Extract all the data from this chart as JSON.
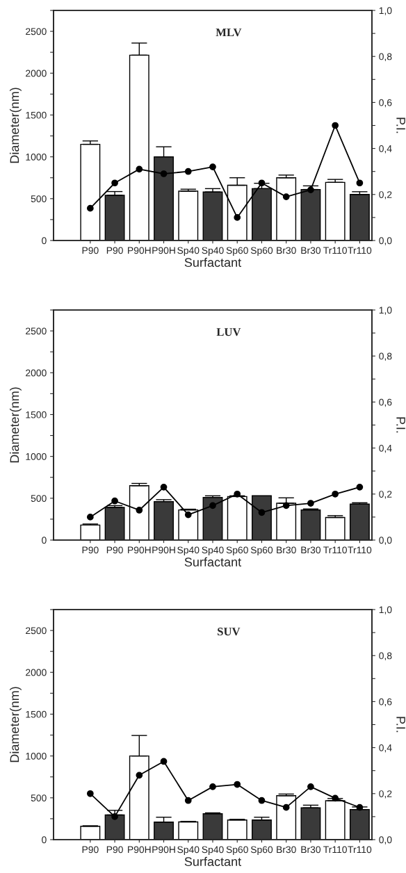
{
  "chart_data": [
    {
      "type": "bar",
      "title": "MLV",
      "xlabel": "Surfactant",
      "ylabel": "Diameter(nm)",
      "y2label": "P.I.",
      "categories": [
        "P90",
        "P90",
        "P90H",
        "P90H",
        "Sp40",
        "Sp40",
        "Sp60",
        "Sp60",
        "Br30",
        "Br30",
        "Tr110",
        "Tr110"
      ],
      "ylim": [
        0,
        2750
      ],
      "yticks": [
        0,
        {
          "value": 250,
          "label": null
        },
        500,
        {
          "value": 750,
          "label": null
        },
        1000,
        {
          "value": 1250,
          "label": null
        },
        1500,
        {
          "value": 1750,
          "label": null
        },
        2000,
        {
          "value": 2250,
          "label": null
        },
        2500,
        {
          "value": 2750,
          "label": null
        }
      ],
      "y2lim": [
        0,
        1
      ],
      "y2ticks": [
        {
          "value": 0,
          "label": "0,0"
        },
        {
          "value": 0.1,
          "label": null
        },
        {
          "value": 0.2,
          "label": "0,2"
        },
        {
          "value": 0.3,
          "label": null
        },
        {
          "value": 0.4,
          "label": "0,4"
        },
        {
          "value": 0.5,
          "label": null
        },
        {
          "value": 0.6,
          "label": "0,6"
        },
        {
          "value": 0.7,
          "label": null
        },
        {
          "value": 0.8,
          "label": "0,8"
        },
        {
          "value": 0.9,
          "label": null
        },
        {
          "value": 1,
          "label": "1,0"
        }
      ],
      "grid": false,
      "legend": false,
      "series": [
        {
          "colors": [
            "#ffffff",
            "#3a3a3a",
            "#ffffff",
            "#3a3a3a",
            "#ffffff",
            "#3a3a3a",
            "#ffffff",
            "#3a3a3a",
            "#ffffff",
            "#3a3a3a",
            "#ffffff",
            "#3a3a3a"
          ],
          "values": [
            1150,
            540,
            2215,
            1000,
            590,
            580,
            660,
            620,
            750,
            610,
            695,
            550
          ],
          "errors": [
            [
              1150,
              1190
            ],
            [
              540,
              585
            ],
            [
              2215,
              2360
            ],
            [
              1000,
              1120
            ],
            [
              590,
              613
            ],
            [
              580,
              620
            ],
            [
              660,
              750
            ],
            [
              620,
              684
            ],
            [
              750,
              782
            ],
            [
              610,
              653
            ],
            [
              695,
              730
            ],
            [
              550,
              583
            ]
          ]
        },
        {
          "type": "line",
          "axis": "y2",
          "color": "#000000",
          "marker": "circle",
          "line_style": "solid",
          "values": [
            0.14,
            0.25,
            0.31,
            0.29,
            0.3,
            0.32,
            0.1,
            0.25,
            0.19,
            0.22,
            0.5,
            0.25
          ]
        }
      ]
    },
    {
      "type": "bar",
      "title": "LUV",
      "xlabel": "Surfactant",
      "ylabel": "Diameter(nm)",
      "y2label": "P.I.",
      "categories": [
        "P90",
        "P90",
        "P90H",
        "P90H",
        "Sp40",
        "Sp40",
        "Sp60",
        "Sp60",
        "Br30",
        "Br30",
        "Tr110",
        "Tr110"
      ],
      "ylim": [
        0,
        2750
      ],
      "yticks": [
        0,
        {
          "value": 250,
          "label": null
        },
        500,
        {
          "value": 750,
          "label": null
        },
        1000,
        {
          "value": 1250,
          "label": null
        },
        1500,
        {
          "value": 1750,
          "label": null
        },
        2000,
        {
          "value": 2250,
          "label": null
        },
        2500,
        {
          "value": 2750,
          "label": null
        }
      ],
      "y2lim": [
        0,
        1
      ],
      "y2ticks": [
        {
          "value": 0,
          "label": "0,0"
        },
        {
          "value": 0.1,
          "label": null
        },
        {
          "value": 0.2,
          "label": "0,2"
        },
        {
          "value": 0.3,
          "label": null
        },
        {
          "value": 0.4,
          "label": "0,4"
        },
        {
          "value": 0.5,
          "label": null
        },
        {
          "value": 0.6,
          "label": "0,6"
        },
        {
          "value": 0.7,
          "label": null
        },
        {
          "value": 0.8,
          "label": "0,8"
        },
        {
          "value": 0.9,
          "label": null
        },
        {
          "value": 1,
          "label": "1,0"
        }
      ],
      "grid": false,
      "legend": false,
      "series": [
        {
          "colors": [
            "#ffffff",
            "#3a3a3a",
            "#ffffff",
            "#3a3a3a",
            "#ffffff",
            "#3a3a3a",
            "#ffffff",
            "#3a3a3a",
            "#ffffff",
            "#3a3a3a",
            "#ffffff",
            "#3a3a3a"
          ],
          "values": [
            180,
            390,
            650,
            460,
            360,
            510,
            520,
            530,
            440,
            360,
            270,
            430
          ],
          "errors": [
            [
              180,
              192
            ],
            [
              390,
              412
            ],
            [
              650,
              677
            ],
            [
              460,
              483
            ],
            [
              360,
              369
            ],
            [
              510,
              529
            ],
            [
              520,
              529
            ],
            null,
            [
              440,
              505
            ],
            [
              360,
              372
            ],
            [
              270,
              292
            ],
            [
              430,
              446
            ]
          ]
        },
        {
          "type": "line",
          "axis": "y2",
          "color": "#000000",
          "marker": "circle",
          "line_style": "solid",
          "values": [
            0.1,
            0.17,
            0.13,
            0.23,
            0.11,
            0.15,
            0.2,
            0.12,
            0.15,
            0.16,
            0.2,
            0.23
          ]
        }
      ]
    },
    {
      "type": "bar",
      "title": "SUV",
      "xlabel": "Surfactant",
      "ylabel": "Diameter(nm)",
      "y2label": "P.I.",
      "categories": [
        "P90",
        "P90",
        "P90H",
        "P90H",
        "Sp40",
        "Sp40",
        "Sp60",
        "Sp60",
        "Br30",
        "Br30",
        "Tr110",
        "Tr110"
      ],
      "ylim": [
        0,
        2750
      ],
      "yticks": [
        0,
        {
          "value": 250,
          "label": null
        },
        500,
        {
          "value": 750,
          "label": null
        },
        1000,
        {
          "value": 1250,
          "label": null
        },
        1500,
        {
          "value": 1750,
          "label": null
        },
        2000,
        {
          "value": 2250,
          "label": null
        },
        2500,
        {
          "value": 2750,
          "label": null
        }
      ],
      "y2lim": [
        0,
        1
      ],
      "y2ticks": [
        {
          "value": 0,
          "label": "0,0"
        },
        {
          "value": 0.1,
          "label": null
        },
        {
          "value": 0.2,
          "label": "0,2"
        },
        {
          "value": 0.3,
          "label": null
        },
        {
          "value": 0.4,
          "label": "0,4"
        },
        {
          "value": 0.5,
          "label": null
        },
        {
          "value": 0.6,
          "label": "0,6"
        },
        {
          "value": 0.7,
          "label": null
        },
        {
          "value": 0.8,
          "label": "0,8"
        },
        {
          "value": 0.9,
          "label": null
        },
        {
          "value": 1,
          "label": "1,0"
        }
      ],
      "grid": false,
      "legend": false,
      "series": [
        {
          "colors": [
            "#ffffff",
            "#3a3a3a",
            "#ffffff",
            "#3a3a3a",
            "#ffffff",
            "#3a3a3a",
            "#ffffff",
            "#3a3a3a",
            "#ffffff",
            "#3a3a3a",
            "#ffffff",
            "#3a3a3a"
          ],
          "values": [
            160,
            295,
            1000,
            210,
            212,
            310,
            235,
            235,
            525,
            380,
            465,
            360
          ],
          "errors": [
            [
              160,
              166
            ],
            [
              295,
              350
            ],
            [
              1000,
              1245
            ],
            [
              210,
              268
            ],
            [
              212,
              218
            ],
            [
              310,
              320
            ],
            [
              235,
              243
            ],
            [
              235,
              268
            ],
            [
              525,
              545
            ],
            [
              380,
              412
            ],
            [
              465,
              492
            ],
            [
              360,
              391
            ]
          ]
        },
        {
          "type": "line",
          "axis": "y2",
          "color": "#000000",
          "marker": "circle",
          "line_style": "solid",
          "values": [
            0.2,
            0.1,
            0.28,
            0.34,
            0.17,
            0.23,
            0.24,
            0.17,
            0.14,
            0.23,
            0.18,
            0.14
          ]
        }
      ]
    }
  ]
}
